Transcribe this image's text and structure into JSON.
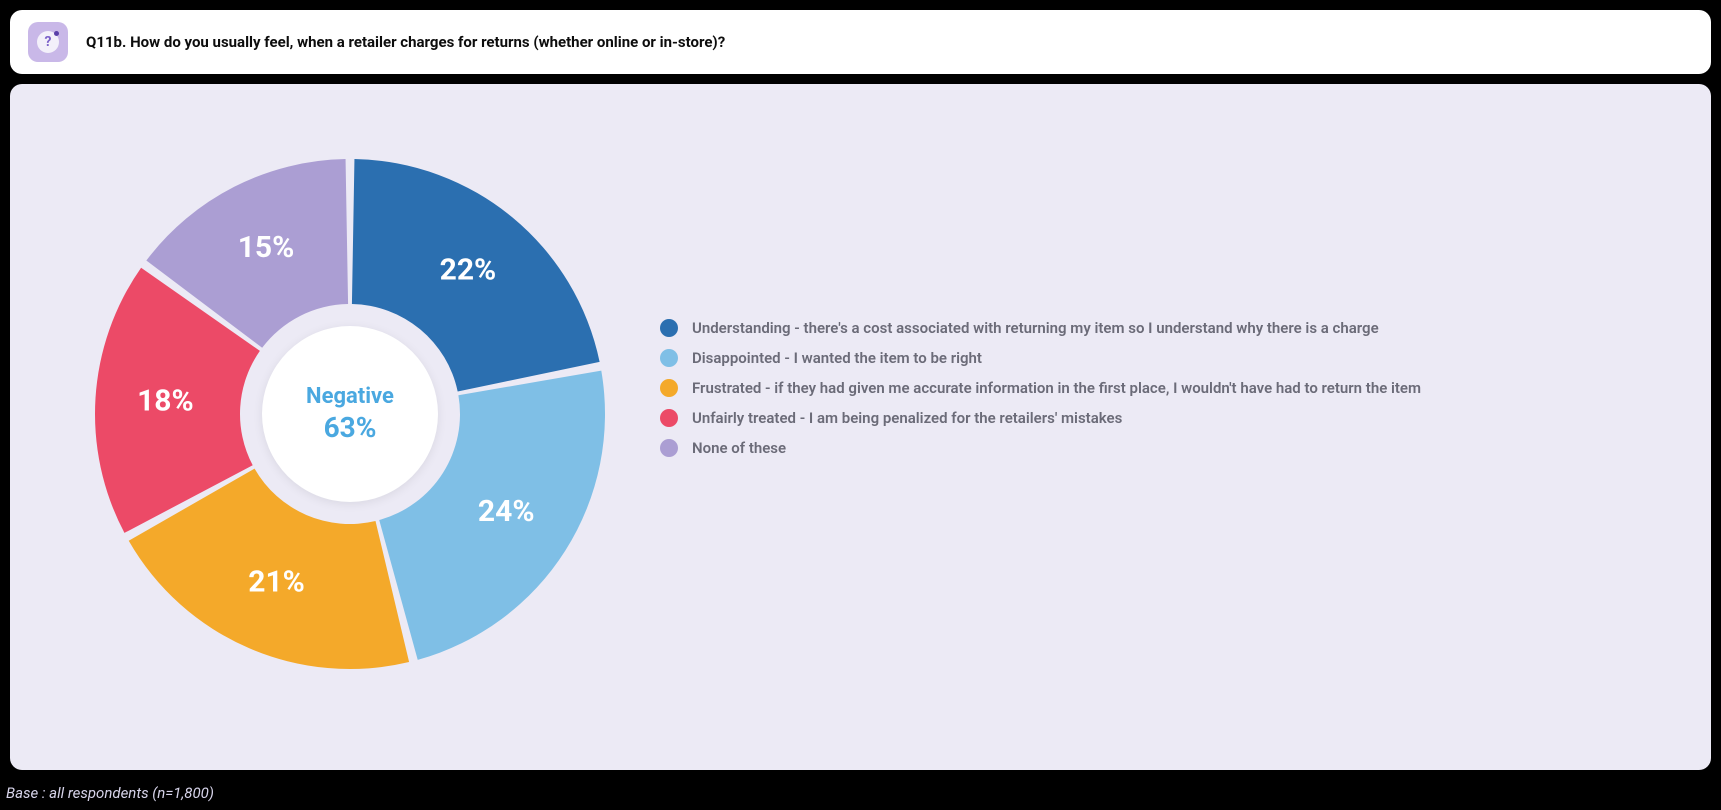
{
  "header": {
    "icon_glyph": "?",
    "title": "Q11b. How do you usually feel, when a retailer charges for returns (whether online or in-store)?"
  },
  "chart": {
    "type": "donut",
    "center_label": "Negative",
    "center_value": "63%",
    "center_text_color": "#4aa8e0",
    "background_color": "#eceaf5",
    "outer_radius": 255,
    "inner_radius": 110,
    "gap_deg": 2,
    "start_angle_deg": -90,
    "label_radius": 185,
    "label_fontsize": 30,
    "label_color": "#ffffff",
    "slices": [
      {
        "value": 22,
        "label": "22%",
        "color": "#2b6fb0",
        "legend": "Understanding - there's a cost associated with returning my item so I understand why there is a charge"
      },
      {
        "value": 24,
        "label": "24%",
        "color": "#7fbfe6",
        "legend": "Disappointed - I wanted the item to be right"
      },
      {
        "value": 21,
        "label": "21%",
        "color": "#f4a92a",
        "legend": "Frustrated - if they had given me accurate information in the first place, I wouldn't have had to return the item"
      },
      {
        "value": 18,
        "label": "18%",
        "color": "#ec4a67",
        "legend": "Unfairly treated - I am being penalized for the retailers' mistakes"
      },
      {
        "value": 15,
        "label": "15%",
        "color": "#ab9ed3",
        "legend": "None of these"
      }
    ]
  },
  "footer": {
    "text": "Base : all respondents (n=1,800)"
  }
}
